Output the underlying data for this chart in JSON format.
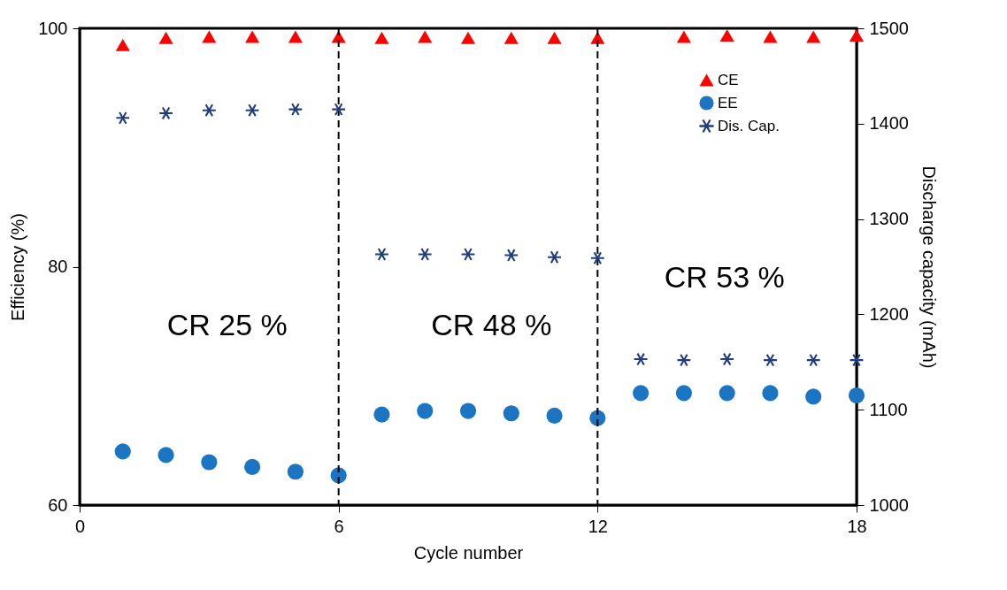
{
  "chart_data": {
    "type": "scatter",
    "xlabel": "Cycle number",
    "ylabel": "Efficiency (%)",
    "y2label": "Discharge capacity (mAh)",
    "x": [
      1,
      2,
      3,
      4,
      5,
      6,
      7,
      8,
      9,
      10,
      11,
      12,
      13,
      14,
      15,
      16,
      17,
      18
    ],
    "series": [
      {
        "name": "CE",
        "color": "#ff0000",
        "marker": "triangle",
        "values": [
          98.6,
          99.2,
          99.3,
          99.3,
          99.3,
          99.3,
          99.2,
          99.3,
          99.2,
          99.2,
          99.2,
          99.2,
          null,
          99.3,
          99.4,
          99.3,
          99.3,
          99.4
        ]
      },
      {
        "name": "EE",
        "color": "#1b75c2",
        "marker": "circle",
        "values": [
          64.5,
          64.2,
          63.6,
          63.2,
          62.8,
          62.5,
          67.6,
          67.9,
          67.9,
          67.7,
          67.5,
          67.3,
          69.4,
          69.4,
          69.4,
          69.4,
          69.1,
          69.2
        ]
      },
      {
        "name": "Dis. Cap.",
        "color": "#1f3c7c",
        "marker": "cross",
        "axis": "y2",
        "values": [
          1406,
          1411,
          1414,
          1414,
          1415,
          1415,
          1263,
          1263,
          1263,
          1262,
          1260,
          1259,
          1153,
          1152,
          1153,
          1152,
          1152,
          1152
        ]
      }
    ],
    "xlim": [
      0,
      18
    ],
    "xticks": [
      0,
      6,
      12,
      18
    ],
    "ylim": [
      60,
      100
    ],
    "yticks": [
      60,
      80,
      100
    ],
    "y2lim": [
      1000,
      1500
    ],
    "y2ticks": [
      1000,
      1100,
      1200,
      1300,
      1400,
      1500
    ],
    "ref_lines": [
      {
        "axis": "x",
        "value": 6,
        "line_style": "dashed",
        "color": "#000000"
      },
      {
        "axis": "x",
        "value": 12,
        "line_style": "dashed",
        "color": "#000000"
      }
    ],
    "annotations": [
      "CR 25 %",
      "CR 48 %",
      "CR 53 %"
    ],
    "legend": "top right",
    "grid": false
  }
}
